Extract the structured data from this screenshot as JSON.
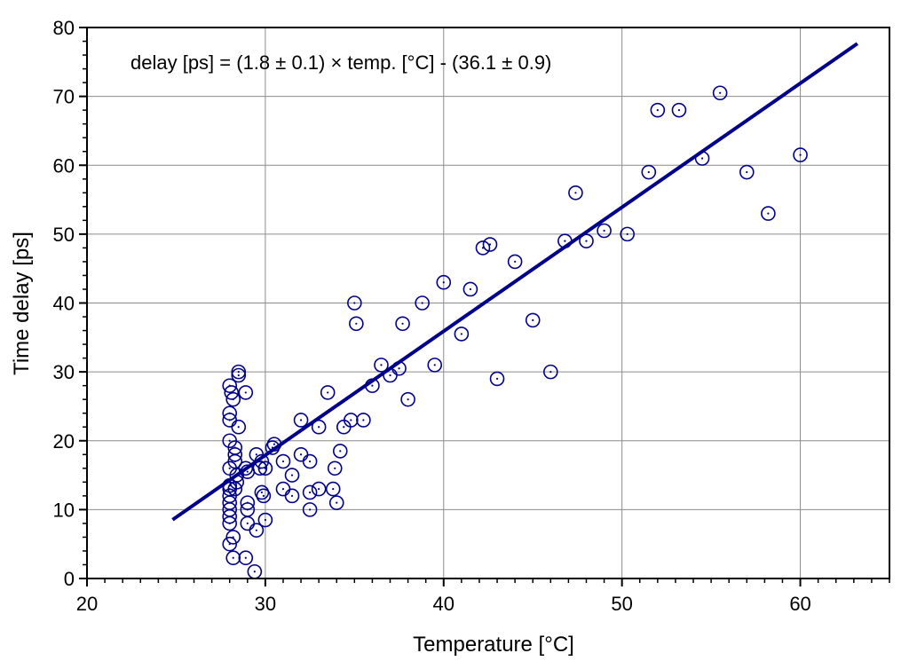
{
  "chart_data": {
    "type": "scatter",
    "title": "",
    "xlabel": "Temperature [°C]",
    "ylabel": "Time delay [ps]",
    "xlim": [
      20,
      65
    ],
    "ylim": [
      0,
      80
    ],
    "x_ticks": [
      20,
      30,
      40,
      50,
      60
    ],
    "y_ticks": [
      0,
      10,
      20,
      30,
      40,
      50,
      60,
      70,
      80
    ],
    "x_minor_step": 1,
    "y_minor_step": 2,
    "grid": true,
    "colors": {
      "series": "#00008b",
      "grid": "#8c8c8c",
      "axis": "#000000"
    },
    "annotation": "delay [ps] = (1.8 ± 0.1) × temp. [°C] - (36.1 ± 0.9)",
    "series": [
      {
        "name": "measurements",
        "marker": "circle-dot",
        "points": [
          [
            28.5,
            30
          ],
          [
            28.5,
            29.5
          ],
          [
            28,
            28
          ],
          [
            28.1,
            27
          ],
          [
            28.9,
            27
          ],
          [
            28.2,
            26
          ],
          [
            28,
            24
          ],
          [
            28,
            23
          ],
          [
            28.5,
            22
          ],
          [
            28,
            20
          ],
          [
            28.3,
            19
          ],
          [
            28.3,
            18
          ],
          [
            28.3,
            17
          ],
          [
            28,
            16
          ],
          [
            28.4,
            15
          ],
          [
            28.4,
            14
          ],
          [
            28,
            13.5
          ],
          [
            28,
            13
          ],
          [
            28.3,
            13
          ],
          [
            28,
            12
          ],
          [
            28,
            11
          ],
          [
            28,
            10
          ],
          [
            28,
            9
          ],
          [
            28,
            8
          ],
          [
            28,
            5
          ],
          [
            28.2,
            6
          ],
          [
            28.2,
            3
          ],
          [
            28.9,
            3
          ],
          [
            29.4,
            1
          ],
          [
            28.9,
            16
          ],
          [
            29,
            15.5
          ],
          [
            29.5,
            18
          ],
          [
            29.8,
            17
          ],
          [
            29.7,
            16
          ],
          [
            30,
            16
          ],
          [
            29,
            11
          ],
          [
            29,
            10
          ],
          [
            29,
            8
          ],
          [
            29.5,
            7
          ],
          [
            29.8,
            12.5
          ],
          [
            29.9,
            12
          ],
          [
            30,
            8.5
          ],
          [
            30.5,
            19.5
          ],
          [
            30.4,
            19
          ],
          [
            31,
            17
          ],
          [
            31,
            13
          ],
          [
            31.5,
            15
          ],
          [
            31.5,
            12
          ],
          [
            32,
            23
          ],
          [
            32,
            18
          ],
          [
            32.5,
            17
          ],
          [
            32.5,
            12.5
          ],
          [
            32.5,
            10
          ],
          [
            33,
            22
          ],
          [
            33,
            13
          ],
          [
            33.5,
            27
          ],
          [
            33.8,
            13
          ],
          [
            33.9,
            16
          ],
          [
            34,
            11
          ],
          [
            34.2,
            18.5
          ],
          [
            34.4,
            22
          ],
          [
            34.8,
            23
          ],
          [
            35.5,
            23
          ],
          [
            35,
            40
          ],
          [
            35.1,
            37
          ],
          [
            36,
            28
          ],
          [
            36.5,
            31
          ],
          [
            37,
            29.5
          ],
          [
            37.5,
            30.5
          ],
          [
            37.7,
            37
          ],
          [
            38,
            26
          ],
          [
            38.8,
            40
          ],
          [
            39.5,
            31
          ],
          [
            40,
            43
          ],
          [
            41,
            35.5
          ],
          [
            41.5,
            42
          ],
          [
            42.2,
            48
          ],
          [
            42.6,
            48.5
          ],
          [
            43,
            29
          ],
          [
            44,
            46
          ],
          [
            45,
            37.5
          ],
          [
            46,
            30
          ],
          [
            46.8,
            49
          ],
          [
            47.4,
            56
          ],
          [
            48,
            49
          ],
          [
            49,
            50.5
          ],
          [
            50.3,
            50
          ],
          [
            51.5,
            59
          ],
          [
            52,
            68
          ],
          [
            53.2,
            68
          ],
          [
            54.5,
            61
          ],
          [
            55.5,
            70.5
          ],
          [
            57,
            59
          ],
          [
            58.2,
            53
          ],
          [
            60,
            61.5
          ]
        ]
      }
    ],
    "fit_line": {
      "name": "linear fit",
      "slope": 1.8,
      "intercept": -36.1,
      "x_range": [
        24.8,
        63.2
      ]
    }
  }
}
